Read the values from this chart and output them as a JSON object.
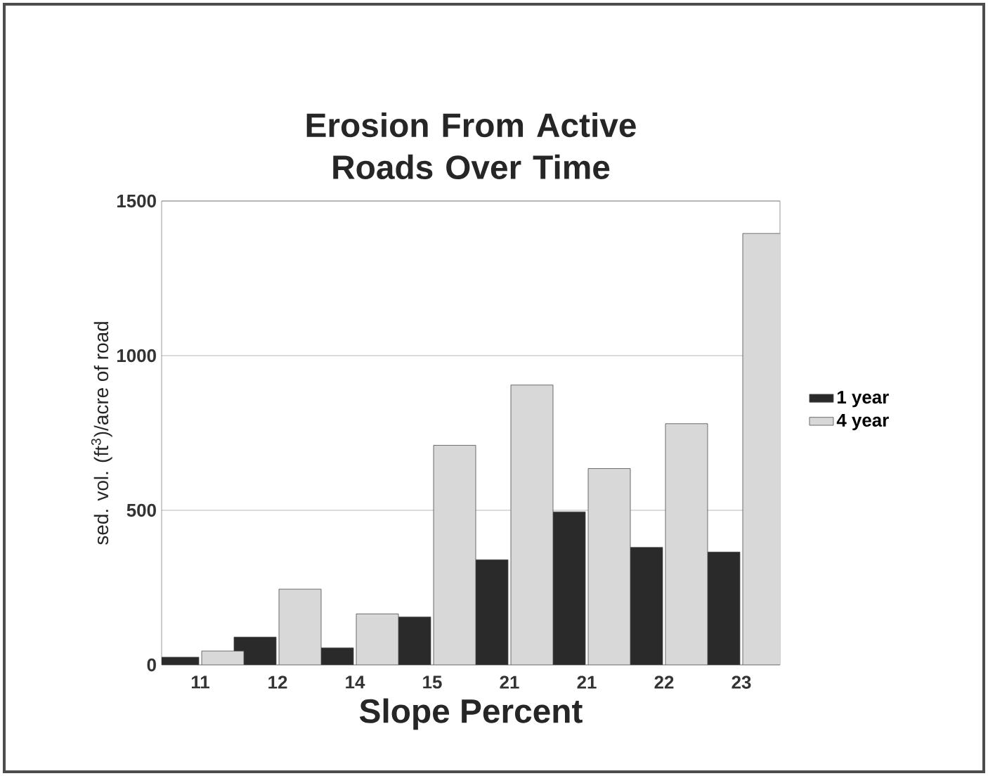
{
  "chart_data": {
    "type": "bar",
    "title": "Erosion From Active Roads Over Time",
    "xlabel": "Slope Percent",
    "ylabel": "sed. vol. (ft$^{3}$)/acre of road",
    "categories": [
      "11",
      "12",
      "14",
      "15",
      "21",
      "21",
      "22",
      "23"
    ],
    "series": [
      {
        "name": "1 year",
        "color": "#2a2a2a",
        "values": [
          25,
          90,
          55,
          155,
          340,
          495,
          380,
          365
        ]
      },
      {
        "name": "4 year",
        "color": "#d8d8d8",
        "values": [
          45,
          245,
          165,
          710,
          905,
          635,
          780,
          1395
        ]
      }
    ],
    "ylim": [
      0,
      1500
    ],
    "yticks": [
      0,
      500,
      1000,
      1500
    ],
    "grid": "y",
    "legend": "right"
  }
}
